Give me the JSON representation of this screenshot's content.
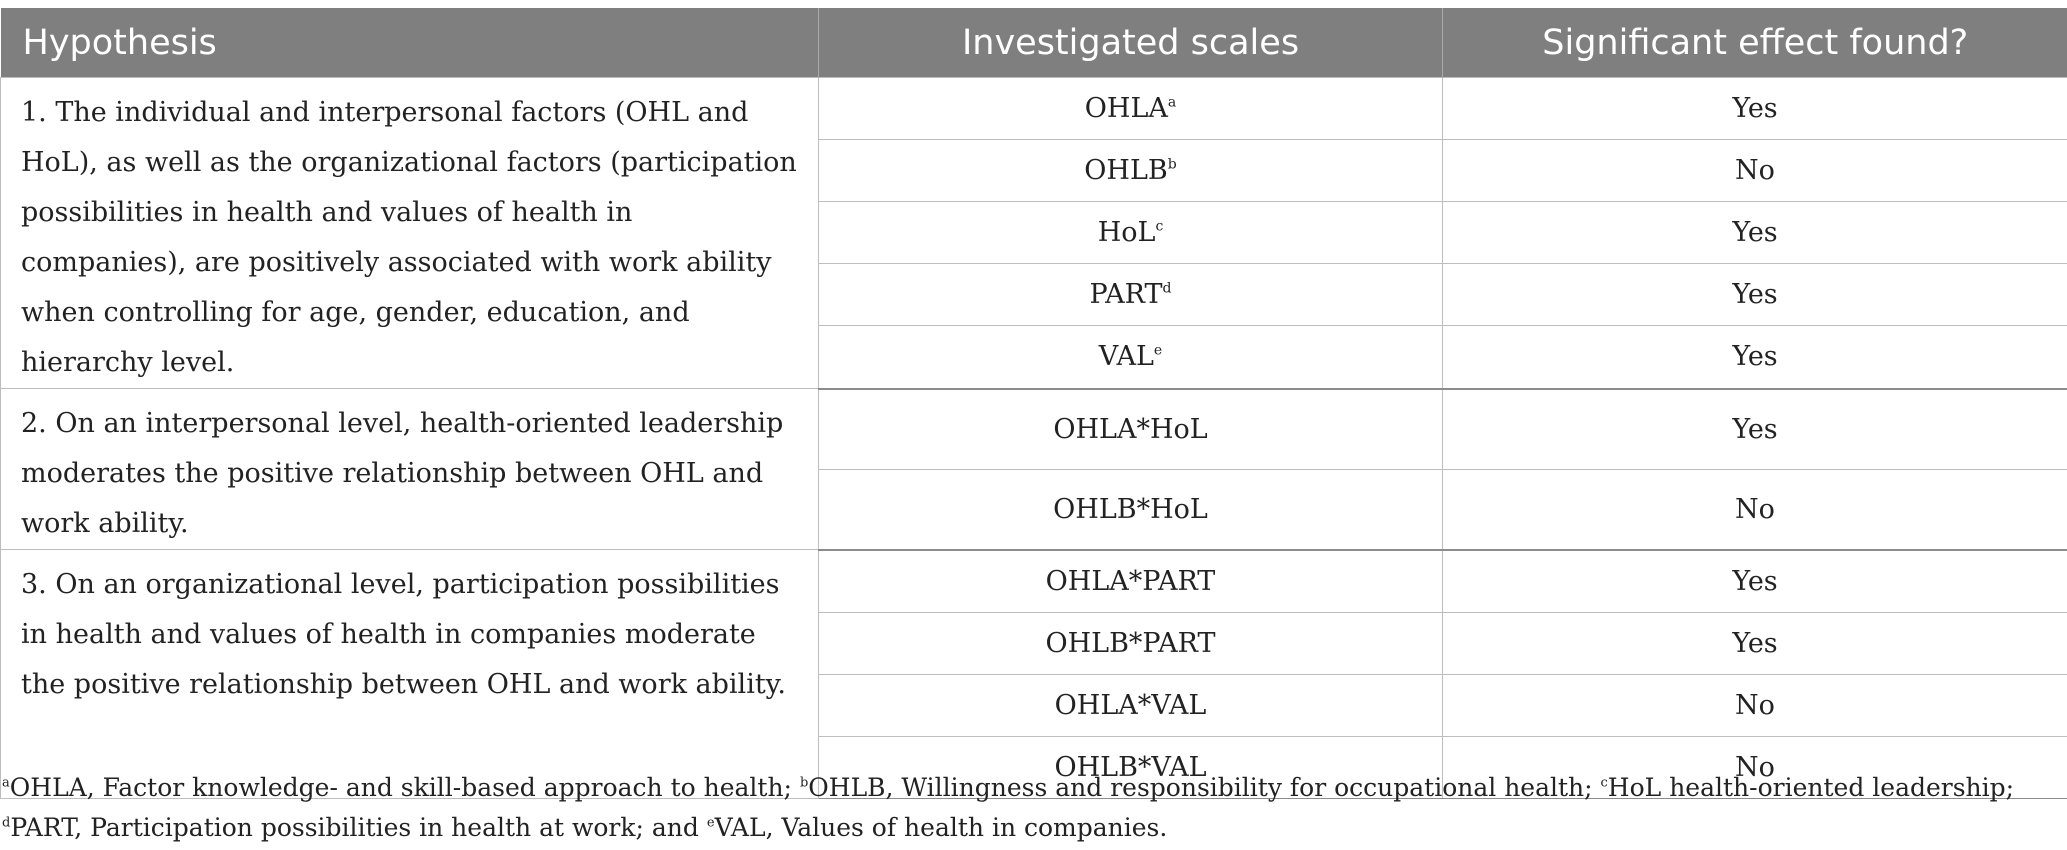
{
  "table": {
    "headers": {
      "hypothesis": "Hypothesis",
      "scales": "Investigated scales",
      "effect": "Significant effect found?"
    },
    "groups": [
      {
        "hypothesis": "1. The individual and interpersonal factors (OHL and HoL), as well as the organizational factors (participation possibilities in health and values of health in companies), are positively associated with work ability when controlling for age, gender, education, and hierarchy level.",
        "rows": [
          {
            "scale": "OHLA",
            "sup": "a",
            "effect": "Yes"
          },
          {
            "scale": "OHLB",
            "sup": "b",
            "effect": "No"
          },
          {
            "scale": "HoL",
            "sup": "c",
            "effect": "Yes"
          },
          {
            "scale": "PART",
            "sup": "d",
            "effect": "Yes"
          },
          {
            "scale": "VAL",
            "sup": "e",
            "effect": "Yes"
          }
        ]
      },
      {
        "hypothesis": "2. On an interpersonal level, health-oriented leadership moderates the positive relationship between OHL and work ability.",
        "rows": [
          {
            "scale": "OHLA*HoL",
            "sup": "",
            "effect": "Yes"
          },
          {
            "scale": "OHLB*HoL",
            "sup": "",
            "effect": "No"
          }
        ]
      },
      {
        "hypothesis": "3. On an organizational level, participation possibilities in health and values of health in companies moderate the positive relationship between OHL and work ability.",
        "rows": [
          {
            "scale": "OHLA*PART",
            "sup": "",
            "effect": "Yes"
          },
          {
            "scale": "OHLB*PART",
            "sup": "",
            "effect": "Yes"
          },
          {
            "scale": "OHLA*VAL",
            "sup": "",
            "effect": "No"
          },
          {
            "scale": "OHLB*VAL",
            "sup": "",
            "effect": "No"
          }
        ]
      }
    ]
  },
  "footnotes": [
    {
      "mark": "a",
      "text": "OHLA, Factor knowledge- and skill-based approach to health; "
    },
    {
      "mark": "b",
      "text": "OHLB, Willingness and responsibility for occupational health; "
    },
    {
      "mark": "c",
      "text": "HoL health-oriented leadership; "
    },
    {
      "mark": "d",
      "text": "PART, Participation possibilities in health at work; and "
    },
    {
      "mark": "e",
      "text": "VAL, Values of health in companies."
    }
  ],
  "colors": {
    "header_bg": "#7f7f7f",
    "header_text": "#ffffff",
    "grid": "#bdbdbd"
  }
}
